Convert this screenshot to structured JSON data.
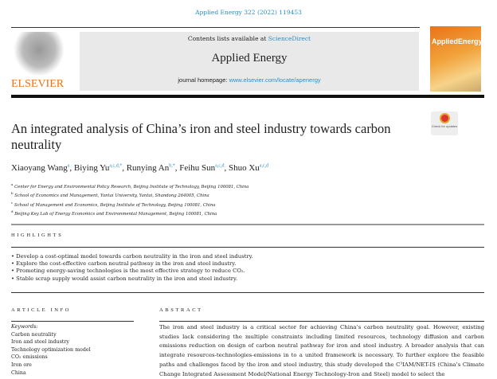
{
  "journal_ref": "Applied Energy 322 (2022) 119453",
  "header": {
    "contents_prefix": "Contents lists available at ",
    "sciencedirect": "ScienceDirect",
    "journal": "Applied Energy",
    "homepage_prefix": "journal homepage: ",
    "homepage_url": "www.elsevier.com/locate/apenergy",
    "publisher": "ELSEVIER",
    "cover_title": "AppliedEnergy",
    "check_updates": "Check for updates"
  },
  "title": "An integrated analysis of China’s iron and steel industry towards carbon neutrality",
  "authors": [
    {
      "name": "Xiaoyang Wang",
      "sup": "a"
    },
    {
      "name": "Biying Yu",
      "sup": "a,c,d,*"
    },
    {
      "name": "Runying An",
      "sup": "b,*"
    },
    {
      "name": "Feihu Sun",
      "sup": "a,c,d"
    },
    {
      "name": "Shuo Xu",
      "sup": "a,c,d"
    }
  ],
  "affiliations": [
    {
      "sup": "a",
      "text": "Center for Energy and Environmental Policy Research, Beijing Institute of Technology, Beijing 100081, China"
    },
    {
      "sup": "b",
      "text": "School of Economics and Management, Yantai University, Yantai, Shandong 264005, China"
    },
    {
      "sup": "c",
      "text": "School of Management and Economics, Beijing Institute of Technology, Beijing 100081, China"
    },
    {
      "sup": "d",
      "text": "Beijing Key Lab of Energy Economics and Environmental Management, Beijing 100081, China"
    }
  ],
  "highlights_heading": "HIGHLIGHTS",
  "highlights": [
    "• Develop a cost-optimal model towards carbon neutrality in the iron and steel industry.",
    "• Explore the cost-effective carbon neutral pathway in the iron and steel industry.",
    "• Promoting energy-saving technologies is the most effective strategy to reduce CO₂.",
    "• Stable scrap supply would assist carbon neutrality in the iron and steel industry."
  ],
  "article_info_heading": "ARTICLE INFO",
  "keywords_label": "Keywords:",
  "keywords": [
    "Carbon neutrality",
    "Iron and steel industry",
    "Technology optimization model",
    "CO₂ emissions",
    "Iron ore",
    "China"
  ],
  "abstract_heading": "ABSTRACT",
  "abstract": "The iron and steel industry is a critical sector for achieving China’s carbon neutrality goal. However, existing studies lack considering the multiple constraints including limited resources, technology diffusion and carbon emissions reduction on design of carbon neutral pathway for iron and steel industry. A broader analysis that can integrate resources-technologies-emissions in to a united framework is necessary. To further explore the feasible paths and challenges faced by the iron and steel industry, this study developed the C³IAM/NET-IS (China’s Climate Change Integrated Assessment Model/National Energy Technology-Iron and Steel) model to select the"
}
